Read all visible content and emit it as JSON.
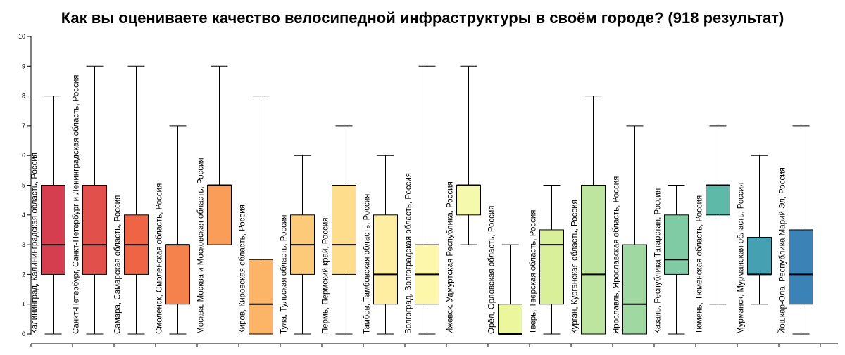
{
  "chart_data": {
    "type": "boxplot",
    "title": "Как вы оцениваете качество велосипедной инфраструктуры в своём городе? (918 результат)",
    "xlabel": "",
    "ylabel": "",
    "ylim": [
      0,
      10
    ],
    "yticks": [
      "0",
      "1",
      "2",
      "3",
      "4",
      "5",
      "6",
      "7",
      "8",
      "9",
      "10"
    ],
    "grid": false,
    "categories": [
      "Калининград, Калининградская область, Россия",
      "Санкт-Петербург, Санкт-Петербург и Ленинградская область, Россия",
      "Самара, Самарская область, Россия",
      "Смоленск, Смоленская область, Россия",
      "Москва, Москва и Московская область, Россия",
      "Киров, Кировская область, Россия",
      "Тула, Тульская область, Россия",
      "Пермь, Пермский край, Россия",
      "Тамбов, Тамбовская область, Россия",
      "Волгоград, Волгоградская область, Россия",
      "Ижевск, Удмуртская Республика, Россия",
      "Орёл, Орловская область, Россия",
      "Тверь, Тверская область, Россия",
      "Курган, Курганская область, Россия",
      "Ярославль, Ярославская область, Россия",
      "Казань, Республика Татарстан, Россия",
      "Тюмень, Тюменская область, Россия",
      "Мурманск, Мурманская область, Россия",
      "Йошкар-Ола, Республика Марий Эл, Россия"
    ],
    "boxes": [
      {
        "min": 0,
        "q1": 2,
        "median": 3,
        "q3": 5,
        "max": 8,
        "color": "#d53e4f"
      },
      {
        "min": 0,
        "q1": 2,
        "median": 3,
        "q3": 5,
        "max": 9,
        "color": "#e1504a"
      },
      {
        "min": 0,
        "q1": 2,
        "median": 3,
        "q3": 4,
        "max": 9,
        "color": "#ee6445"
      },
      {
        "min": 0,
        "q1": 1,
        "median": 3,
        "q3": 3,
        "max": 7,
        "color": "#f5814c"
      },
      {
        "min": 3,
        "q1": 3,
        "median": 5,
        "q3": 5,
        "max": 9,
        "color": "#f99d58"
      },
      {
        "min": 0,
        "q1": 0,
        "median": 1,
        "q3": 2.5,
        "max": 8,
        "color": "#fcb466"
      },
      {
        "min": 0,
        "q1": 2,
        "median": 3,
        "q3": 4,
        "max": 6,
        "color": "#fdca79"
      },
      {
        "min": 0,
        "q1": 2,
        "median": 3,
        "q3": 5,
        "max": 7,
        "color": "#fede8d"
      },
      {
        "min": 0,
        "q1": 1,
        "median": 2,
        "q3": 4,
        "max": 6,
        "color": "#feeea1"
      },
      {
        "min": 0,
        "q1": 1,
        "median": 2,
        "q3": 3,
        "max": 9,
        "color": "#fdf7ac"
      },
      {
        "min": 3,
        "q1": 4,
        "median": 5,
        "q3": 5,
        "max": 9,
        "color": "#f5f9ad"
      },
      {
        "min": 0,
        "q1": 0,
        "median": 0,
        "q3": 1,
        "max": 3,
        "color": "#ebf69d"
      },
      {
        "min": 0,
        "q1": 1,
        "median": 3,
        "q3": 3.5,
        "max": 5,
        "color": "#d9ef9a"
      },
      {
        "min": 0,
        "q1": 0,
        "median": 2,
        "q3": 5,
        "max": 8,
        "color": "#bee5a0"
      },
      {
        "min": 0,
        "q1": 0,
        "median": 1,
        "q3": 3,
        "max": 7,
        "color": "#a0d8a2"
      },
      {
        "min": 0,
        "q1": 2,
        "median": 2.5,
        "q3": 4,
        "max": 5,
        "color": "#80cba4"
      },
      {
        "min": 1,
        "q1": 4,
        "median": 5,
        "q3": 5,
        "max": 7,
        "color": "#5fb9a8"
      },
      {
        "min": 1,
        "q1": 2,
        "median": 2,
        "q3": 3.25,
        "max": 6,
        "color": "#45a0b1"
      },
      {
        "min": 0,
        "q1": 1,
        "median": 2,
        "q3": 3.5,
        "max": 7,
        "color": "#3b83b7"
      }
    ]
  }
}
